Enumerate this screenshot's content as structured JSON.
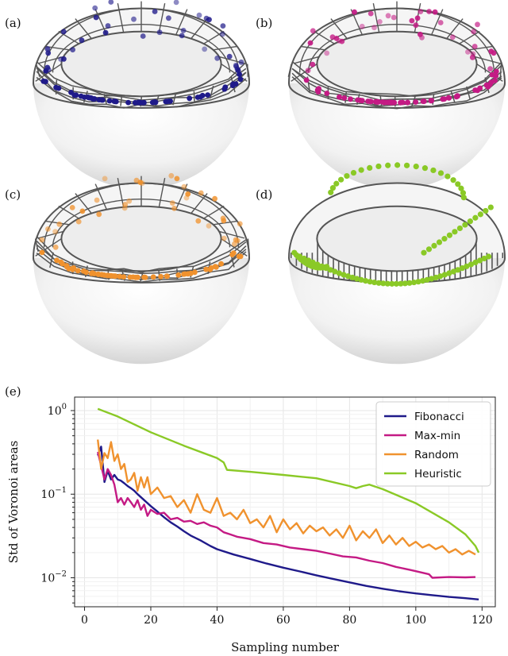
{
  "panels": {
    "a": {
      "label": "(a)",
      "color": "#1f1a8a",
      "kind": "fibonacci"
    },
    "b": {
      "label": "(b)",
      "color": "#c41a84",
      "kind": "maxmin"
    },
    "c": {
      "label": "(c)",
      "color": "#f0922e",
      "kind": "random"
    },
    "d": {
      "label": "(d)",
      "color": "#8ac926",
      "kind": "heuristic"
    },
    "e": {
      "label": "(e)"
    }
  },
  "colors": {
    "mesh": "#555555",
    "grid": "#e6e6e6",
    "fibonacci": "#1f1a8a",
    "maxmin": "#c41a84",
    "random": "#f0922e",
    "heuristic": "#8ac926"
  },
  "chart_data": {
    "type": "line",
    "xlabel": "Sampling number",
    "ylabel": "Std of Voronoi areas",
    "xlim": [
      -3,
      124
    ],
    "ylim": [
      0.0045,
      1.45
    ],
    "yscale": "log",
    "grid": true,
    "legend_position": "top-right",
    "x_ticks": [
      0,
      20,
      40,
      60,
      80,
      100,
      120
    ],
    "x_tick_labels": [
      "0",
      "20",
      "40",
      "60",
      "80",
      "100",
      "120"
    ],
    "y_ticks": [
      1,
      0.1,
      0.01
    ],
    "y_tick_labels": [
      {
        "base": "10",
        "exp": "0"
      },
      {
        "base": "10",
        "exp": "−1"
      },
      {
        "base": "10",
        "exp": "−2"
      }
    ],
    "series": [
      {
        "name": "Fibonacci",
        "color": "#1f1a8a",
        "x": [
          4,
          5,
          6,
          7,
          8,
          9,
          10,
          11,
          12,
          13,
          14,
          15,
          16,
          18,
          20,
          22,
          24,
          26,
          28,
          30,
          32,
          35,
          38,
          40,
          45,
          50,
          55,
          60,
          65,
          70,
          75,
          80,
          85,
          90,
          95,
          100,
          105,
          110,
          115,
          119
        ],
        "y": [
          0.29,
          0.37,
          0.14,
          0.19,
          0.15,
          0.17,
          0.15,
          0.145,
          0.135,
          0.125,
          0.118,
          0.11,
          0.1,
          0.085,
          0.072,
          0.062,
          0.053,
          0.046,
          0.041,
          0.036,
          0.032,
          0.028,
          0.024,
          0.022,
          0.019,
          0.0168,
          0.0148,
          0.0132,
          0.0119,
          0.0107,
          0.0097,
          0.0088,
          0.008,
          0.0074,
          0.0069,
          0.0065,
          0.0062,
          0.0059,
          0.0057,
          0.0055
        ]
      },
      {
        "name": "Max-min",
        "color": "#c41a84",
        "x": [
          4,
          5,
          6,
          7,
          8,
          9,
          10,
          11,
          12,
          13,
          14,
          15,
          16,
          17,
          18,
          19,
          20,
          22,
          24,
          26,
          28,
          30,
          32,
          34,
          36,
          38,
          40,
          42,
          44,
          46,
          50,
          54,
          58,
          62,
          66,
          70,
          74,
          78,
          82,
          86,
          90,
          94,
          98,
          100,
          104,
          105,
          110,
          115,
          118
        ],
        "y": [
          0.32,
          0.22,
          0.15,
          0.2,
          0.17,
          0.13,
          0.08,
          0.09,
          0.075,
          0.09,
          0.08,
          0.07,
          0.085,
          0.065,
          0.075,
          0.055,
          0.065,
          0.058,
          0.06,
          0.05,
          0.052,
          0.047,
          0.048,
          0.044,
          0.046,
          0.042,
          0.04,
          0.035,
          0.033,
          0.031,
          0.029,
          0.026,
          0.025,
          0.023,
          0.022,
          0.021,
          0.0195,
          0.018,
          0.0175,
          0.016,
          0.015,
          0.0135,
          0.0125,
          0.012,
          0.011,
          0.01,
          0.0102,
          0.0101,
          0.0102
        ]
      },
      {
        "name": "Random",
        "color": "#f0922e",
        "x": [
          4,
          5,
          6,
          7,
          8,
          9,
          10,
          11,
          12,
          13,
          14,
          15,
          16,
          17,
          18,
          19,
          20,
          22,
          24,
          26,
          28,
          30,
          32,
          34,
          36,
          38,
          40,
          42,
          44,
          46,
          48,
          50,
          52,
          54,
          56,
          58,
          60,
          62,
          64,
          66,
          68,
          70,
          72,
          74,
          76,
          78,
          80,
          82,
          84,
          86,
          88,
          90,
          92,
          94,
          96,
          98,
          100,
          102,
          104,
          106,
          108,
          110,
          112,
          114,
          116,
          118
        ],
        "y": [
          0.45,
          0.2,
          0.31,
          0.27,
          0.42,
          0.25,
          0.3,
          0.2,
          0.23,
          0.14,
          0.15,
          0.18,
          0.11,
          0.16,
          0.12,
          0.16,
          0.1,
          0.12,
          0.09,
          0.095,
          0.07,
          0.085,
          0.06,
          0.1,
          0.065,
          0.06,
          0.09,
          0.055,
          0.06,
          0.05,
          0.065,
          0.045,
          0.05,
          0.04,
          0.055,
          0.035,
          0.05,
          0.038,
          0.045,
          0.034,
          0.042,
          0.036,
          0.04,
          0.032,
          0.038,
          0.03,
          0.042,
          0.028,
          0.036,
          0.03,
          0.038,
          0.026,
          0.032,
          0.025,
          0.03,
          0.024,
          0.027,
          0.023,
          0.025,
          0.022,
          0.024,
          0.02,
          0.022,
          0.019,
          0.021,
          0.019
        ]
      },
      {
        "name": "Heuristic",
        "color": "#8ac926",
        "x": [
          4,
          10,
          20,
          30,
          40,
          42,
          43,
          50,
          60,
          70,
          80,
          82,
          84,
          86,
          90,
          100,
          110,
          115,
          118,
          119
        ],
        "y": [
          1.05,
          0.85,
          0.55,
          0.38,
          0.27,
          0.24,
          0.195,
          0.185,
          0.17,
          0.155,
          0.125,
          0.118,
          0.125,
          0.13,
          0.115,
          0.078,
          0.046,
          0.033,
          0.024,
          0.02
        ]
      }
    ]
  }
}
